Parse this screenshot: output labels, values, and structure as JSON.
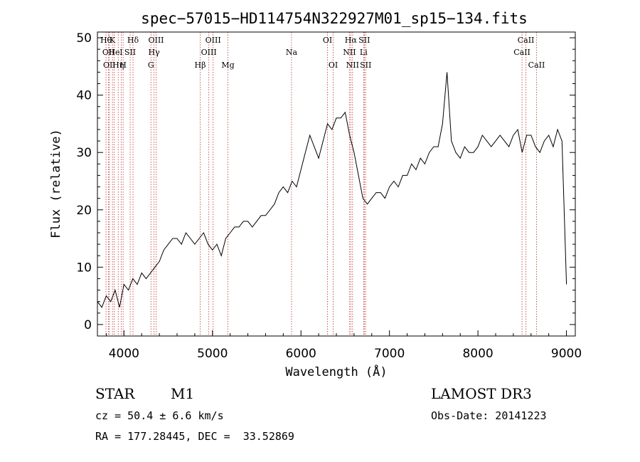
{
  "chart_data": {
    "type": "line",
    "title": "spec−57015−HD114754N322927M01_sp15−134.fits",
    "xlabel": "Wavelength (Å)",
    "ylabel": "Flux (relative)",
    "xlim": [
      3700,
      9100
    ],
    "ylim": [
      -2,
      51
    ],
    "xticks": [
      4000,
      5000,
      6000,
      7000,
      8000,
      9000
    ],
    "yticks": [
      0,
      10,
      20,
      30,
      40,
      50
    ],
    "grid": false,
    "legend": "none",
    "line_color": "#000000",
    "marker_color": "#c03030",
    "series": [
      {
        "x": [
          3700,
          3750,
          3800,
          3850,
          3900,
          3950,
          4000,
          4050,
          4100,
          4150,
          4200,
          4250,
          4300,
          4350,
          4400,
          4450,
          4500,
          4550,
          4600,
          4650,
          4700,
          4750,
          4800,
          4850,
          4900,
          4950,
          5000,
          5050,
          5100,
          5150,
          5200,
          5250,
          5300,
          5350,
          5400,
          5450,
          5500,
          5550,
          5600,
          5650,
          5700,
          5750,
          5800,
          5850,
          5900,
          5950,
          6000,
          6050,
          6100,
          6150,
          6200,
          6250,
          6300,
          6350,
          6400,
          6450,
          6500,
          6550,
          6600,
          6650,
          6700,
          6750,
          6800,
          6850,
          6900,
          6950,
          7000,
          7050,
          7100,
          7150,
          7200,
          7250,
          7300,
          7350,
          7400,
          7450,
          7500,
          7550,
          7600,
          7650,
          7700,
          7750,
          7800,
          7850,
          7900,
          7950,
          8000,
          8050,
          8100,
          8150,
          8200,
          8250,
          8300,
          8350,
          8400,
          8450,
          8500,
          8550,
          8600,
          8650,
          8700,
          8750,
          8800,
          8850,
          8900,
          8950,
          9000
        ],
        "y": [
          4,
          3,
          5,
          4,
          6,
          3,
          7,
          6,
          8,
          7,
          9,
          8,
          9,
          10,
          11,
          13,
          14,
          15,
          15,
          14,
          16,
          15,
          14,
          15,
          16,
          14,
          13,
          14,
          12,
          15,
          16,
          17,
          17,
          18,
          18,
          17,
          18,
          19,
          19,
          20,
          21,
          23,
          24,
          23,
          25,
          24,
          27,
          30,
          33,
          31,
          29,
          32,
          35,
          34,
          36,
          36,
          37,
          33,
          30,
          26,
          22,
          21,
          22,
          23,
          23,
          22,
          24,
          25,
          24,
          26,
          26,
          28,
          27,
          29,
          28,
          30,
          31,
          31,
          35,
          44,
          32,
          30,
          29,
          31,
          30,
          30,
          31,
          33,
          32,
          31,
          32,
          33,
          32,
          31,
          33,
          34,
          30,
          33,
          33,
          31,
          30,
          32,
          33,
          31,
          34,
          32,
          7
        ]
      }
    ],
    "annotations": [
      {
        "x": 3797,
        "row": 1,
        "label": "Hθ"
      },
      {
        "x": 3826,
        "row": 2,
        "label": "OII"
      },
      {
        "x": 3835,
        "row": 3,
        "label": "OII"
      },
      {
        "x": 3870,
        "row": 1,
        "label": "K"
      },
      {
        "x": 3889,
        "row": 2,
        "label": "He"
      },
      {
        "x": 3935,
        "row": 3,
        "label": "Hη"
      },
      {
        "x": 3969,
        "row": 2,
        "label": "I"
      },
      {
        "x": 3990,
        "row": 3,
        "label": "H"
      },
      {
        "x": 4070,
        "row": 2,
        "label": "SII"
      },
      {
        "x": 4102,
        "row": 1,
        "label": "Hδ"
      },
      {
        "x": 4305,
        "row": 3,
        "label": "G"
      },
      {
        "x": 4340,
        "row": 2,
        "label": "Hγ"
      },
      {
        "x": 4363,
        "row": 1,
        "label": "OIII"
      },
      {
        "x": 4861,
        "row": 3,
        "label": "Hβ"
      },
      {
        "x": 4959,
        "row": 2,
        "label": "OIII"
      },
      {
        "x": 5007,
        "row": 1,
        "label": "OIII"
      },
      {
        "x": 5175,
        "row": 3,
        "label": "Mg"
      },
      {
        "x": 5893,
        "row": 2,
        "label": "Na"
      },
      {
        "x": 6300,
        "row": 1,
        "label": "OI"
      },
      {
        "x": 6364,
        "row": 3,
        "label": "OI"
      },
      {
        "x": 6548,
        "row": 2,
        "label": "NII"
      },
      {
        "x": 6563,
        "row": 1,
        "label": "Hα"
      },
      {
        "x": 6583,
        "row": 3,
        "label": "NII"
      },
      {
        "x": 6708,
        "row": 2,
        "label": "Li"
      },
      {
        "x": 6716,
        "row": 1,
        "label": "SII"
      },
      {
        "x": 6731,
        "row": 3,
        "label": "SII"
      },
      {
        "x": 8498,
        "row": 2,
        "label": "CaII"
      },
      {
        "x": 8542,
        "row": 1,
        "label": "CaII"
      },
      {
        "x": 8662,
        "row": 3,
        "label": "CaII"
      }
    ]
  },
  "info": {
    "class": "STAR",
    "subclass": "M1",
    "survey": "LAMOST DR3",
    "cz": "cz = 50.4 ± 6.6 km/s",
    "obs_date": "Obs-Date: 20141223",
    "radec": "RA = 177.28445, DEC =  33.52869"
  }
}
